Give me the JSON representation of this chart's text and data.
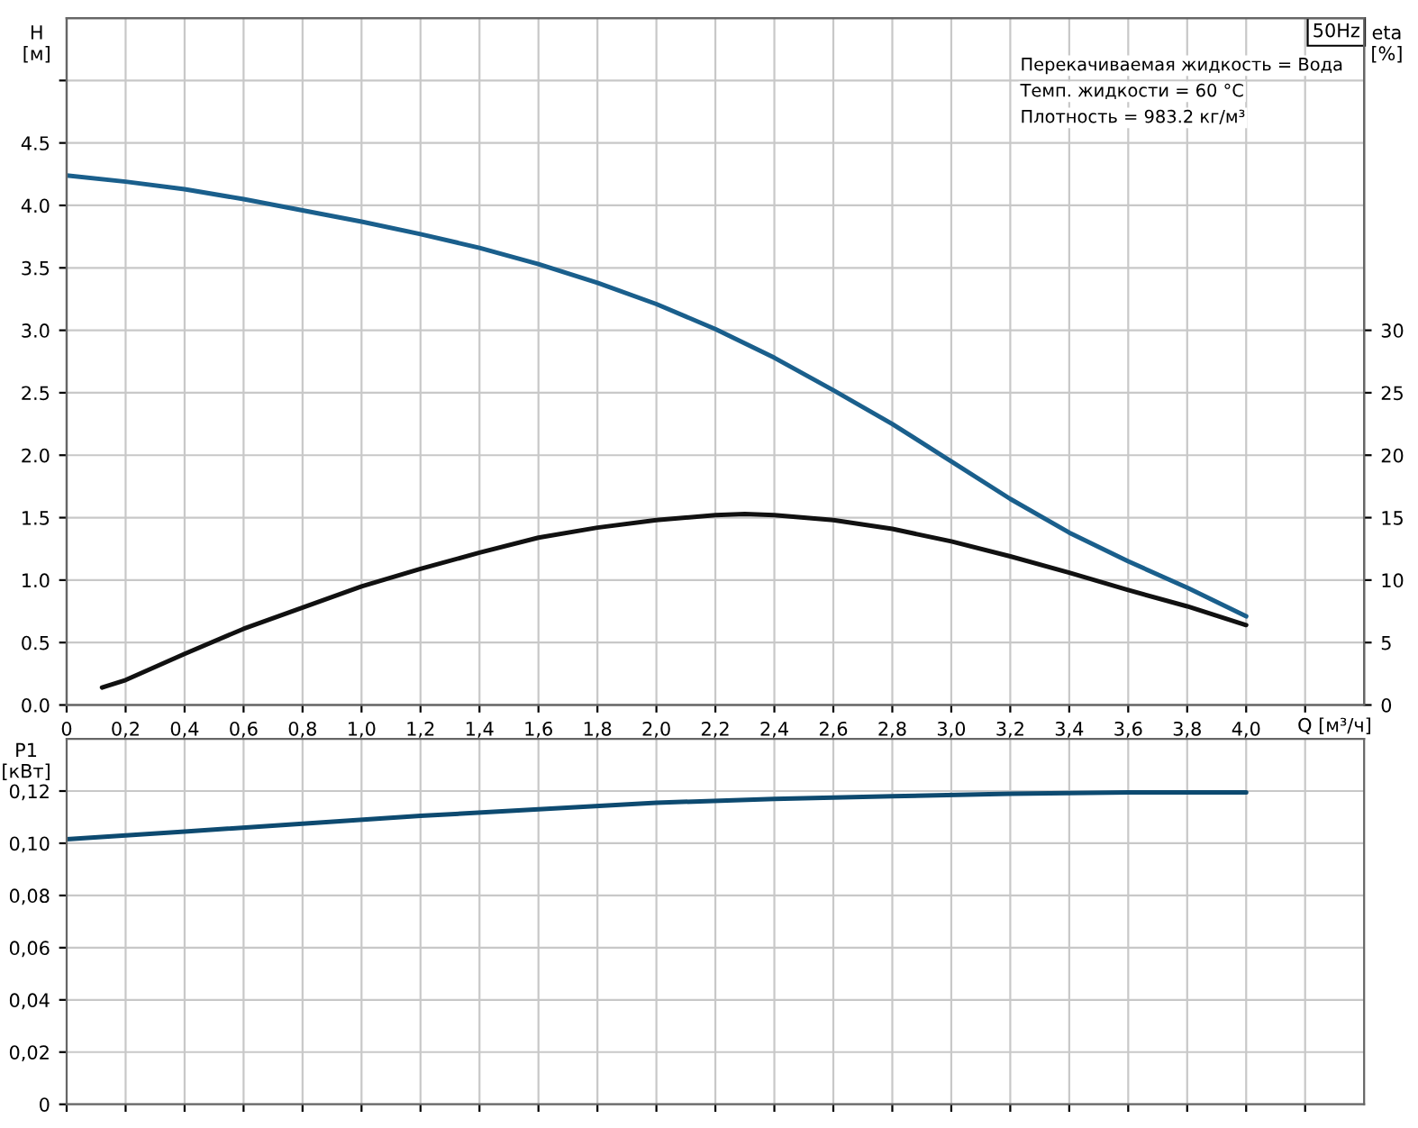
{
  "chart_data": [
    {
      "type": "line",
      "ylabel": "H\n[м]",
      "y2label": "eta\n[%]",
      "xlabel": "Q [м³/ч]",
      "annotations": [
        "50Hz",
        "Перекачиваемая жидкость = Вода",
        "Темп. жидкости = 60 °C",
        "Плотность = 983.2 кг/м³"
      ],
      "series": [
        {
          "color": "#1a5f8c",
          "x": [
            0,
            0.2,
            0.4,
            0.6,
            0.8,
            1.0,
            1.2,
            1.4,
            1.6,
            1.8,
            2.0,
            2.2,
            2.4,
            2.6,
            2.8,
            3.0,
            3.2,
            3.4,
            3.6,
            3.8,
            4.0
          ],
          "values": [
            4.24,
            4.19,
            4.13,
            4.05,
            3.96,
            3.87,
            3.77,
            3.66,
            3.53,
            3.38,
            3.21,
            3.01,
            2.78,
            2.52,
            2.25,
            1.95,
            1.65,
            1.38,
            1.15,
            0.94,
            0.71
          ]
        },
        {
          "color": "#111111",
          "axis": "y2",
          "x": [
            0.12,
            0.2,
            0.4,
            0.6,
            0.8,
            1.0,
            1.2,
            1.4,
            1.6,
            1.8,
            2.0,
            2.2,
            2.3,
            2.4,
            2.6,
            2.8,
            3.0,
            3.2,
            3.4,
            3.6,
            3.8,
            4.0
          ],
          "values": [
            1.4,
            2.0,
            4.1,
            6.1,
            7.8,
            9.5,
            10.9,
            12.2,
            13.4,
            14.2,
            14.8,
            15.2,
            15.3,
            15.2,
            14.8,
            14.1,
            13.1,
            11.9,
            10.6,
            9.2,
            7.9,
            6.4
          ]
        }
      ],
      "xlim": [
        0,
        4.4
      ],
      "xticks": [
        {
          "value": 0,
          "label": "0"
        },
        {
          "value": 0.2,
          "label": "0,2"
        },
        {
          "value": 0.4,
          "label": "0,4"
        },
        {
          "value": 0.6,
          "label": "0,6"
        },
        {
          "value": 0.8,
          "label": "0,8"
        },
        {
          "value": 1.0,
          "label": "1,0"
        },
        {
          "value": 1.2,
          "label": "1,2"
        },
        {
          "value": 1.4,
          "label": "1,4"
        },
        {
          "value": 1.6,
          "label": "1,6"
        },
        {
          "value": 1.8,
          "label": "1,8"
        },
        {
          "value": 2.0,
          "label": "2,0"
        },
        {
          "value": 2.2,
          "label": "2,2"
        },
        {
          "value": 2.4,
          "label": "2,4"
        },
        {
          "value": 2.6,
          "label": "2,6"
        },
        {
          "value": 2.8,
          "label": "2,8"
        },
        {
          "value": 3.0,
          "label": "3,0"
        },
        {
          "value": 3.2,
          "label": "3,2"
        },
        {
          "value": 3.4,
          "label": "3,4"
        },
        {
          "value": 3.6,
          "label": "3,6"
        },
        {
          "value": 3.8,
          "label": "3,8"
        },
        {
          "value": 4.0,
          "label": "4,0"
        },
        {
          "value": 4.2,
          "label": null
        }
      ],
      "ylim": [
        0,
        5.5
      ],
      "yticks": [
        {
          "value": 0,
          "label": "0.0"
        },
        0.5,
        {
          "value": 1,
          "label": "1.0"
        },
        1.5,
        {
          "value": 2,
          "label": "2.0"
        },
        2.5,
        {
          "value": 3,
          "label": "3.0"
        },
        3.5,
        {
          "value": 4,
          "label": "4.0"
        },
        4.5,
        {
          "value": 5,
          "label": null
        }
      ],
      "y2lim": [
        0,
        55
      ],
      "y2ticks": [
        0,
        5,
        10,
        15,
        20,
        25,
        30
      ],
      "grid": true,
      "line_style": "solid",
      "marker": "none"
    },
    {
      "type": "line",
      "ylabel": "P1\n[кВт]",
      "series": [
        {
          "color": "#0d4a70",
          "x": [
            0,
            0.4,
            0.8,
            1.2,
            1.6,
            2.0,
            2.4,
            2.8,
            3.2,
            3.6,
            4.0
          ],
          "values": [
            0.1015,
            0.1045,
            0.1075,
            0.1105,
            0.113,
            0.1155,
            0.117,
            0.118,
            0.119,
            0.1195,
            0.1195
          ]
        }
      ],
      "xlim": [
        0,
        4.4
      ],
      "xticks": [
        {
          "value": 0,
          "label": null
        },
        {
          "value": 0.2,
          "label": null
        },
        {
          "value": 0.4,
          "label": null
        },
        {
          "value": 0.6,
          "label": null
        },
        {
          "value": 0.8,
          "label": null
        },
        {
          "value": 1.0,
          "label": null
        },
        {
          "value": 1.2,
          "label": null
        },
        {
          "value": 1.4,
          "label": null
        },
        {
          "value": 1.6,
          "label": null
        },
        {
          "value": 1.8,
          "label": null
        },
        {
          "value": 2.0,
          "label": null
        },
        {
          "value": 2.2,
          "label": null
        },
        {
          "value": 2.4,
          "label": null
        },
        {
          "value": 2.6,
          "label": null
        },
        {
          "value": 2.8,
          "label": null
        },
        {
          "value": 3.0,
          "label": null
        },
        {
          "value": 3.2,
          "label": null
        },
        {
          "value": 3.4,
          "label": null
        },
        {
          "value": 3.6,
          "label": null
        },
        {
          "value": 3.8,
          "label": null
        },
        {
          "value": 4.0,
          "label": null
        },
        {
          "value": 4.2,
          "label": null
        }
      ],
      "ylim": [
        0,
        0.14
      ],
      "yticks": [
        {
          "value": 0,
          "label": "0"
        },
        {
          "value": 0.02,
          "label": "0,02"
        },
        {
          "value": 0.04,
          "label": "0,04"
        },
        {
          "value": 0.06,
          "label": "0,06"
        },
        {
          "value": 0.08,
          "label": "0,08"
        },
        {
          "value": 0.1,
          "label": "0,10"
        },
        {
          "value": 0.12,
          "label": "0,12"
        }
      ],
      "tick_labels": "y",
      "grid": true,
      "line_style": "solid",
      "marker": "none"
    }
  ]
}
